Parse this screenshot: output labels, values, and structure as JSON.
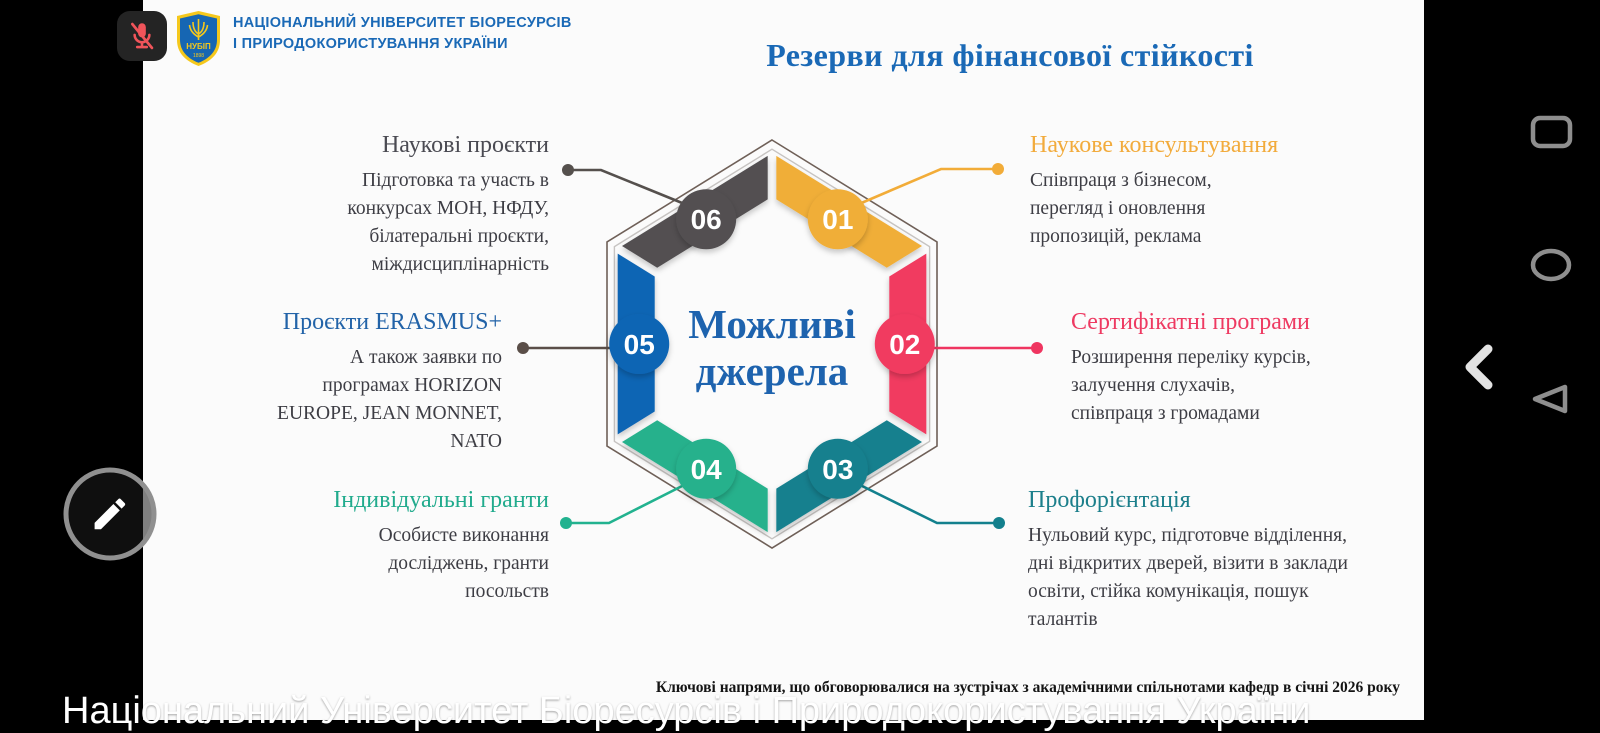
{
  "meeting_ui": {
    "participant_name": "Національний Університет Біоресурсів і Природокористування України",
    "mic_status": "muted"
  },
  "icons": {
    "mic": "mic-muted-icon",
    "annotate": "pencil-icon",
    "nav_recents": "square-icon",
    "nav_home": "circle-icon",
    "nav_back": "triangle-left-icon",
    "nav_collapse": "chevron-left-icon"
  },
  "slide": {
    "logo": {
      "abbr": "НУБІП",
      "year": "1898"
    },
    "university_line1": "НАЦІОНАЛЬНИЙ УНІВЕРСИТЕТ БІОРЕСУРСІВ",
    "university_line2": "І ПРИРОДОКОРИСТУВАННЯ УКРАЇНИ",
    "title": "Резерви для фінансової стійкості",
    "center": {
      "line1": "Можливі",
      "line2": "джерела"
    },
    "caption": "Ключові напрями, що обговорювалися на зустрічах з академічними спільнотами кафедр в січні 2026 року",
    "items": [
      {
        "num": "01",
        "heading": "Наукове консультування",
        "body": "Співпраця з бізнесом,\nперегляд і оновлення\nпропозицій, реклама",
        "color": "#F0AE38",
        "heading_color": "#F2AB3C",
        "line_color": "#F2AC38"
      },
      {
        "num": "02",
        "heading": "Сертифікатні програми",
        "body": "Розширення переліку курсів,\nзалучення слухачів,\nспівпраця з громадами",
        "color": "#F13A60",
        "heading_color": "#EE3A62",
        "line_color": "#EF3560"
      },
      {
        "num": "03",
        "heading": "Профорієнтація",
        "body": "Нульовий курс, підготовче відділення,\nдні відкритих дверей, візити в заклади\nосвіти, стійка комунікація, пошук\nталантів",
        "color": "#15808E",
        "heading_color": "#1C7F8B",
        "line_color": "#13808D"
      },
      {
        "num": "04",
        "heading": "Індивідуальні гранти",
        "body": "Особисте виконання\nдосліджень, гранти\nпосольств",
        "color": "#27B18C",
        "heading_color": "#21AB8D",
        "line_color": "#22B28F"
      },
      {
        "num": "05",
        "heading": "Проєкти ERASMUS+",
        "body": "А також заявки по\nпрограмах HORIZON\nEUROPE, JEAN MONNET,\nNATO",
        "color": "#0F65B4",
        "heading_color": "#2263A8",
        "line_color": "#5A4E48"
      },
      {
        "num": "06",
        "heading": "Наукові проєкти",
        "body": "Підготовка та участь в\nконкурсах МОН, НФДУ,\nбілатеральні проєкти,\nміждисциплінарність",
        "color": "#525051",
        "heading_color": "#4A4A52",
        "line_color": "#55504D"
      }
    ]
  }
}
